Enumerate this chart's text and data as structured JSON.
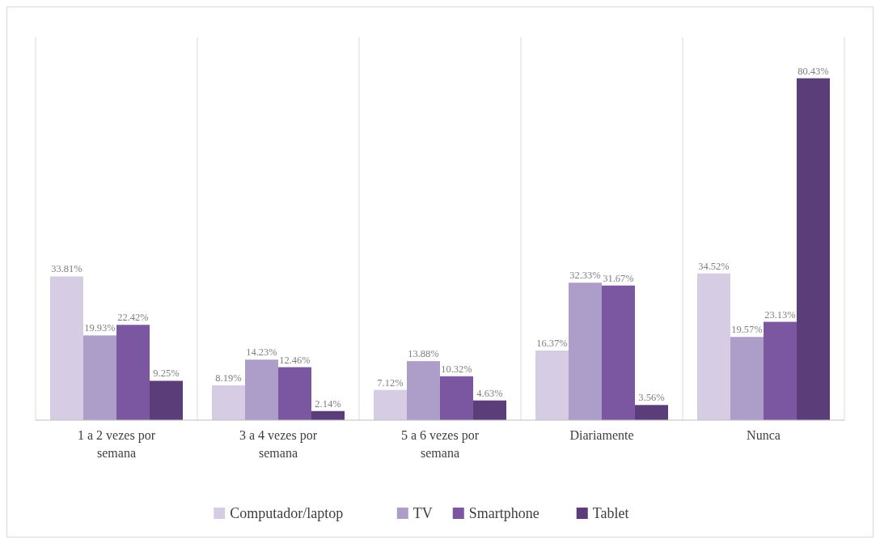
{
  "chart_data": {
    "type": "bar",
    "categories": [
      "1 a 2 vezes por semana",
      "3 a 4 vezes por semana",
      "5 a 6 vezes por semana",
      "Diariamente",
      "Nunca"
    ],
    "series": [
      {
        "name": "Computador/laptop",
        "color": "#d6cde4",
        "values": [
          33.81,
          8.19,
          7.12,
          16.37,
          34.52
        ],
        "value_labels": [
          "33.81%",
          "8.19%",
          "7.12%",
          "16.37%",
          "34.52%"
        ]
      },
      {
        "name": "TV",
        "color": "#ad9dc9",
        "values": [
          19.93,
          14.23,
          13.88,
          32.33,
          19.57
        ],
        "value_labels": [
          "19.93%",
          "14.23%",
          "13.88%",
          "32.33%",
          "19.57%"
        ]
      },
      {
        "name": "Smartphone",
        "color": "#7b56a1",
        "values": [
          22.42,
          12.46,
          10.32,
          31.67,
          23.13
        ],
        "value_labels": [
          "22.42%",
          "12.46%",
          "10.32%",
          "31.67%",
          "23.13%"
        ]
      },
      {
        "name": "Tablet",
        "color": "#5b3e79",
        "values": [
          9.25,
          2.14,
          4.63,
          3.56,
          80.43
        ],
        "value_labels": [
          "9.25%",
          "2.14%",
          "4.63%",
          "3.56%",
          "80.43%"
        ]
      }
    ],
    "grid": "x",
    "legend": "bottom"
  }
}
